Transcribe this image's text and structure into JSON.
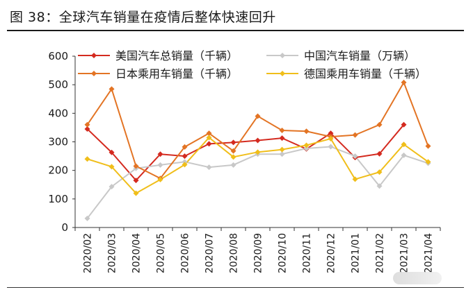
{
  "figure": {
    "title": "图 38：全球汽车销量在疫情后整体快速回升"
  },
  "chart_data": {
    "type": "line",
    "categories": [
      "2020/02",
      "2020/03",
      "2020/04",
      "2020/05",
      "2020/06",
      "2020/07",
      "2020/08",
      "2020/09",
      "2020/10",
      "2020/11",
      "2020/12",
      "2021/01",
      "2021/02",
      "2021/03",
      "2021/04"
    ],
    "ylim": [
      0,
      600
    ],
    "yticks": [
      0,
      100,
      200,
      300,
      400,
      500,
      600
    ],
    "grid": false,
    "legend_position": "top",
    "series": [
      {
        "name": "美国汽车总销量（千辆）",
        "color": "#d42a1f",
        "marker": "diamond",
        "values": [
          345,
          263,
          165,
          257,
          250,
          293,
          298,
          305,
          313,
          275,
          330,
          245,
          258,
          360,
          null
        ]
      },
      {
        "name": "中国汽车销量（万辆）",
        "color": "#c8c8c8",
        "marker": "diamond",
        "values": [
          32,
          143,
          207,
          219,
          230,
          211,
          219,
          257,
          257,
          277,
          283,
          250,
          145,
          253,
          225
        ]
      },
      {
        "name": "日本乘用车销量（千辆）",
        "color": "#e37424",
        "marker": "diamond",
        "values": [
          360,
          485,
          215,
          172,
          282,
          330,
          268,
          390,
          340,
          337,
          318,
          324,
          360,
          508,
          285
        ]
      },
      {
        "name": "德国乘用车销量（千辆）",
        "color": "#f0be1a",
        "marker": "diamond",
        "values": [
          240,
          213,
          120,
          168,
          220,
          315,
          247,
          264,
          273,
          288,
          311,
          169,
          194,
          291,
          230
        ]
      }
    ]
  }
}
